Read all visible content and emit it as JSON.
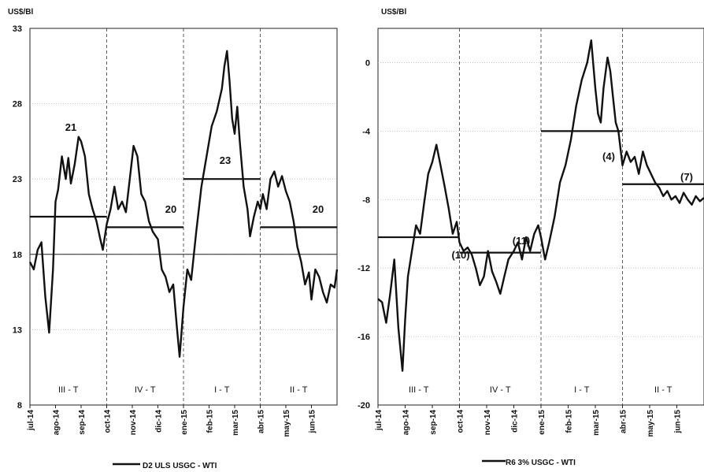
{
  "chart_data": [
    {
      "type": "line",
      "ylabel": "US$/Bl",
      "ylim": [
        8,
        33
      ],
      "yticks": [
        8,
        13,
        18,
        23,
        28,
        33
      ],
      "x_tick_labels": [
        "jul-14",
        "ago-14",
        "sep-14",
        "oct-14",
        "nov-14",
        "dic-14",
        "ene-15",
        "feb-15",
        "mar-15",
        "abr-15",
        "may-15",
        "jun-15"
      ],
      "quarters": [
        {
          "label": "III - T",
          "start": 0,
          "end": 3,
          "avg": 20.5,
          "avg_label": "21"
        },
        {
          "label": "IV - T",
          "start": 3,
          "end": 6,
          "avg": 19.8,
          "avg_label": "20"
        },
        {
          "label": "I - T",
          "start": 6,
          "end": 9,
          "avg": 23.0,
          "avg_label": "23"
        },
        {
          "label": "II - T",
          "start": 9,
          "end": 12,
          "avg": 19.8,
          "avg_label": "20"
        }
      ],
      "reference_line": 18,
      "series": [
        {
          "name": "D2 ULS USGC - WTI",
          "x": [
            0,
            0.15,
            0.3,
            0.45,
            0.6,
            0.75,
            0.9,
            1.0,
            1.1,
            1.25,
            1.4,
            1.5,
            1.6,
            1.75,
            1.9,
            2.0,
            2.15,
            2.3,
            2.45,
            2.6,
            2.75,
            2.85,
            3.0,
            3.15,
            3.3,
            3.45,
            3.6,
            3.75,
            3.9,
            4.05,
            4.2,
            4.35,
            4.5,
            4.65,
            4.8,
            5.0,
            5.15,
            5.3,
            5.45,
            5.6,
            5.75,
            5.85,
            6.0,
            6.15,
            6.3,
            6.5,
            6.7,
            6.9,
            7.1,
            7.3,
            7.5,
            7.6,
            7.7,
            7.8,
            7.9,
            8.0,
            8.1,
            8.2,
            8.35,
            8.5,
            8.6,
            8.75,
            8.9,
            9.0,
            9.1,
            9.25,
            9.4,
            9.55,
            9.7,
            9.85,
            10.0,
            10.15,
            10.3,
            10.45,
            10.6,
            10.75,
            10.9,
            11.0,
            11.15,
            11.3,
            11.45,
            11.6,
            11.75,
            11.9,
            12.0
          ],
          "y": [
            17.5,
            17.0,
            18.3,
            18.8,
            15.2,
            12.8,
            17.0,
            21.5,
            22.3,
            24.5,
            23.0,
            24.4,
            22.7,
            24.0,
            25.8,
            25.5,
            24.5,
            22.0,
            21.0,
            20.2,
            19.0,
            18.3,
            20.0,
            21.0,
            22.5,
            21.0,
            21.5,
            20.8,
            23.0,
            25.2,
            24.5,
            22.0,
            21.5,
            20.2,
            19.5,
            19.0,
            17.0,
            16.5,
            15.5,
            16.0,
            13.0,
            11.2,
            14.5,
            17.0,
            16.3,
            19.5,
            22.5,
            24.5,
            26.5,
            27.5,
            29.0,
            30.5,
            31.5,
            29.5,
            27.0,
            26.0,
            27.8,
            25.5,
            22.5,
            21.0,
            19.2,
            20.5,
            21.5,
            21.0,
            22.0,
            21.0,
            23.0,
            23.5,
            22.5,
            23.2,
            22.2,
            21.5,
            20.2,
            18.5,
            17.5,
            16.0,
            16.8,
            15.0,
            17.0,
            16.5,
            15.5,
            14.8,
            16.0,
            15.8,
            17.0
          ]
        }
      ]
    },
    {
      "type": "line",
      "ylabel": "US$/Bl",
      "ylim": [
        -20,
        2
      ],
      "yticks": [
        -20,
        -16,
        -12,
        -8,
        -4,
        0
      ],
      "x_tick_labels": [
        "jul-14",
        "ago-14",
        "sep-14",
        "oct-14",
        "nov-14",
        "dic-14",
        "ene-15",
        "feb-15",
        "mar-15",
        "abr-15",
        "may-15",
        "jun-15"
      ],
      "quarters": [
        {
          "label": "III - T",
          "start": 0,
          "end": 3,
          "avg": -10.2,
          "avg_label": "(10)"
        },
        {
          "label": "IV - T",
          "start": 3,
          "end": 6,
          "avg": -11.1,
          "avg_label": "(11)"
        },
        {
          "label": "I - T",
          "start": 6,
          "end": 9,
          "avg": -4.0,
          "avg_label": "(4)"
        },
        {
          "label": "II - T",
          "start": 9,
          "end": 12,
          "avg": -7.1,
          "avg_label": "(7)"
        }
      ],
      "series": [
        {
          "name": "R6 3% USGC - WTI",
          "x": [
            0,
            0.15,
            0.3,
            0.45,
            0.6,
            0.75,
            0.9,
            1.0,
            1.1,
            1.25,
            1.4,
            1.55,
            1.7,
            1.85,
            2.0,
            2.15,
            2.3,
            2.45,
            2.6,
            2.75,
            2.9,
            3.0,
            3.15,
            3.3,
            3.45,
            3.6,
            3.75,
            3.9,
            4.05,
            4.2,
            4.35,
            4.5,
            4.65,
            4.8,
            5.0,
            5.15,
            5.3,
            5.45,
            5.6,
            5.75,
            5.9,
            6.0,
            6.15,
            6.3,
            6.5,
            6.7,
            6.9,
            7.1,
            7.3,
            7.5,
            7.7,
            7.85,
            8.0,
            8.1,
            8.2,
            8.3,
            8.45,
            8.55,
            8.65,
            8.75,
            8.85,
            9.0,
            9.15,
            9.3,
            9.45,
            9.6,
            9.75,
            9.9,
            10.05,
            10.2,
            10.35,
            10.5,
            10.65,
            10.8,
            10.95,
            11.1,
            11.25,
            11.4,
            11.55,
            11.7,
            11.85,
            12.0
          ],
          "y": [
            -13.8,
            -14.0,
            -15.2,
            -13.5,
            -11.5,
            -15.5,
            -18.0,
            -15.0,
            -12.5,
            -11.0,
            -9.5,
            -10.0,
            -8.2,
            -6.5,
            -5.8,
            -4.8,
            -6.0,
            -7.2,
            -8.5,
            -10.0,
            -9.3,
            -10.5,
            -11.0,
            -10.8,
            -11.2,
            -12.0,
            -13.0,
            -12.5,
            -11.0,
            -12.2,
            -12.8,
            -13.5,
            -12.5,
            -11.5,
            -11.0,
            -10.5,
            -11.5,
            -10.2,
            -11.0,
            -10.0,
            -9.5,
            -10.2,
            -11.5,
            -10.5,
            -9.0,
            -7.0,
            -6.0,
            -4.5,
            -2.5,
            -1.0,
            0.0,
            1.3,
            -1.5,
            -3.0,
            -3.5,
            -1.5,
            0.3,
            -0.5,
            -2.0,
            -3.5,
            -4.0,
            -6.0,
            -5.2,
            -5.8,
            -5.5,
            -6.5,
            -5.2,
            -6.0,
            -6.5,
            -7.0,
            -7.3,
            -7.8,
            -7.5,
            -8.0,
            -7.8,
            -8.2,
            -7.6,
            -8.0,
            -8.3,
            -7.8,
            -8.1,
            -7.9
          ]
        }
      ]
    }
  ]
}
